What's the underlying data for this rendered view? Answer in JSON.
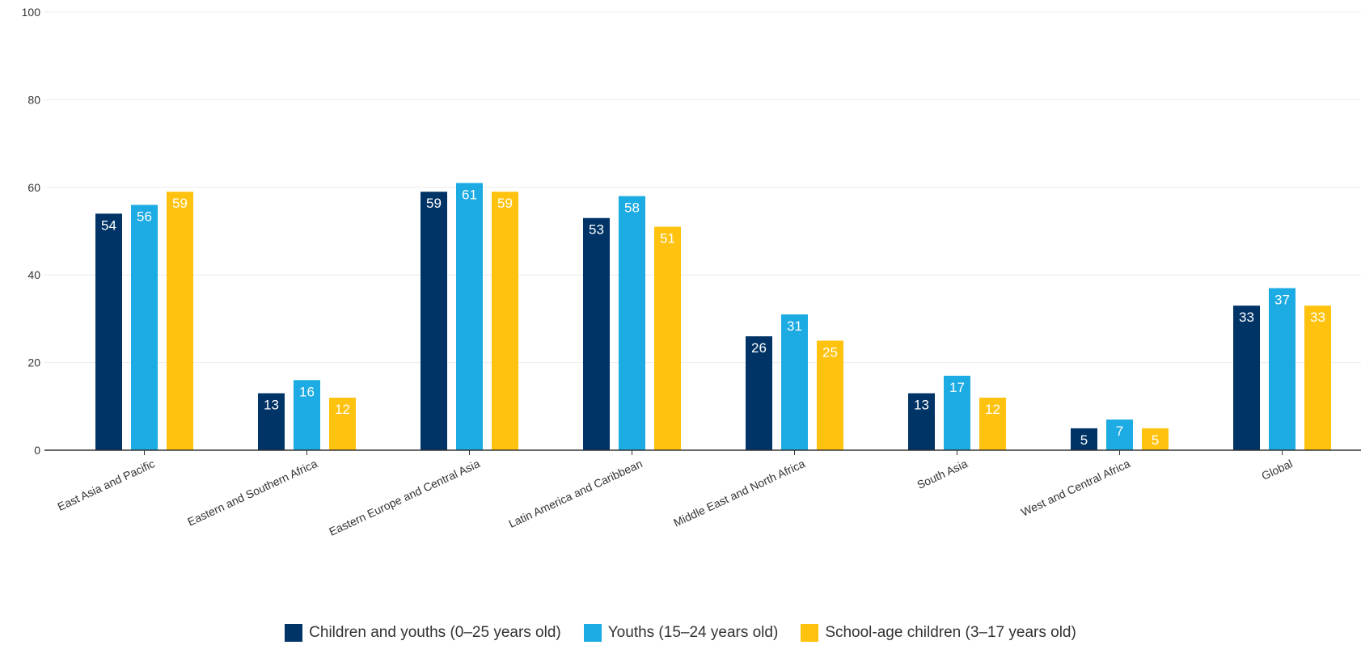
{
  "chart_data": {
    "type": "bar",
    "categories": [
      "East Asia and Pacific",
      "Eastern and Southern Africa",
      "Eastern Europe and Central Asia",
      "Latin America and Caribbean",
      "Middle East and North Africa",
      "South Asia",
      "West and Central Africa",
      "Global"
    ],
    "series": [
      {
        "name": "Children and youths (0–25 years old)",
        "color": "#003366",
        "values": [
          54,
          13,
          59,
          53,
          26,
          13,
          5,
          33
        ]
      },
      {
        "name": "Youths (15–24 years old)",
        "color": "#1CABE2",
        "values": [
          56,
          16,
          61,
          58,
          31,
          17,
          7,
          37
        ]
      },
      {
        "name": "School-age children (3–17 years old)",
        "color": "#FFC20E",
        "values": [
          59,
          12,
          59,
          51,
          25,
          12,
          5,
          33
        ]
      }
    ],
    "ylim": [
      0,
      100
    ],
    "yticks": [
      "0",
      "20",
      "40",
      "60",
      "80",
      "100"
    ],
    "grid": true,
    "legend_position": "bottom-center"
  }
}
